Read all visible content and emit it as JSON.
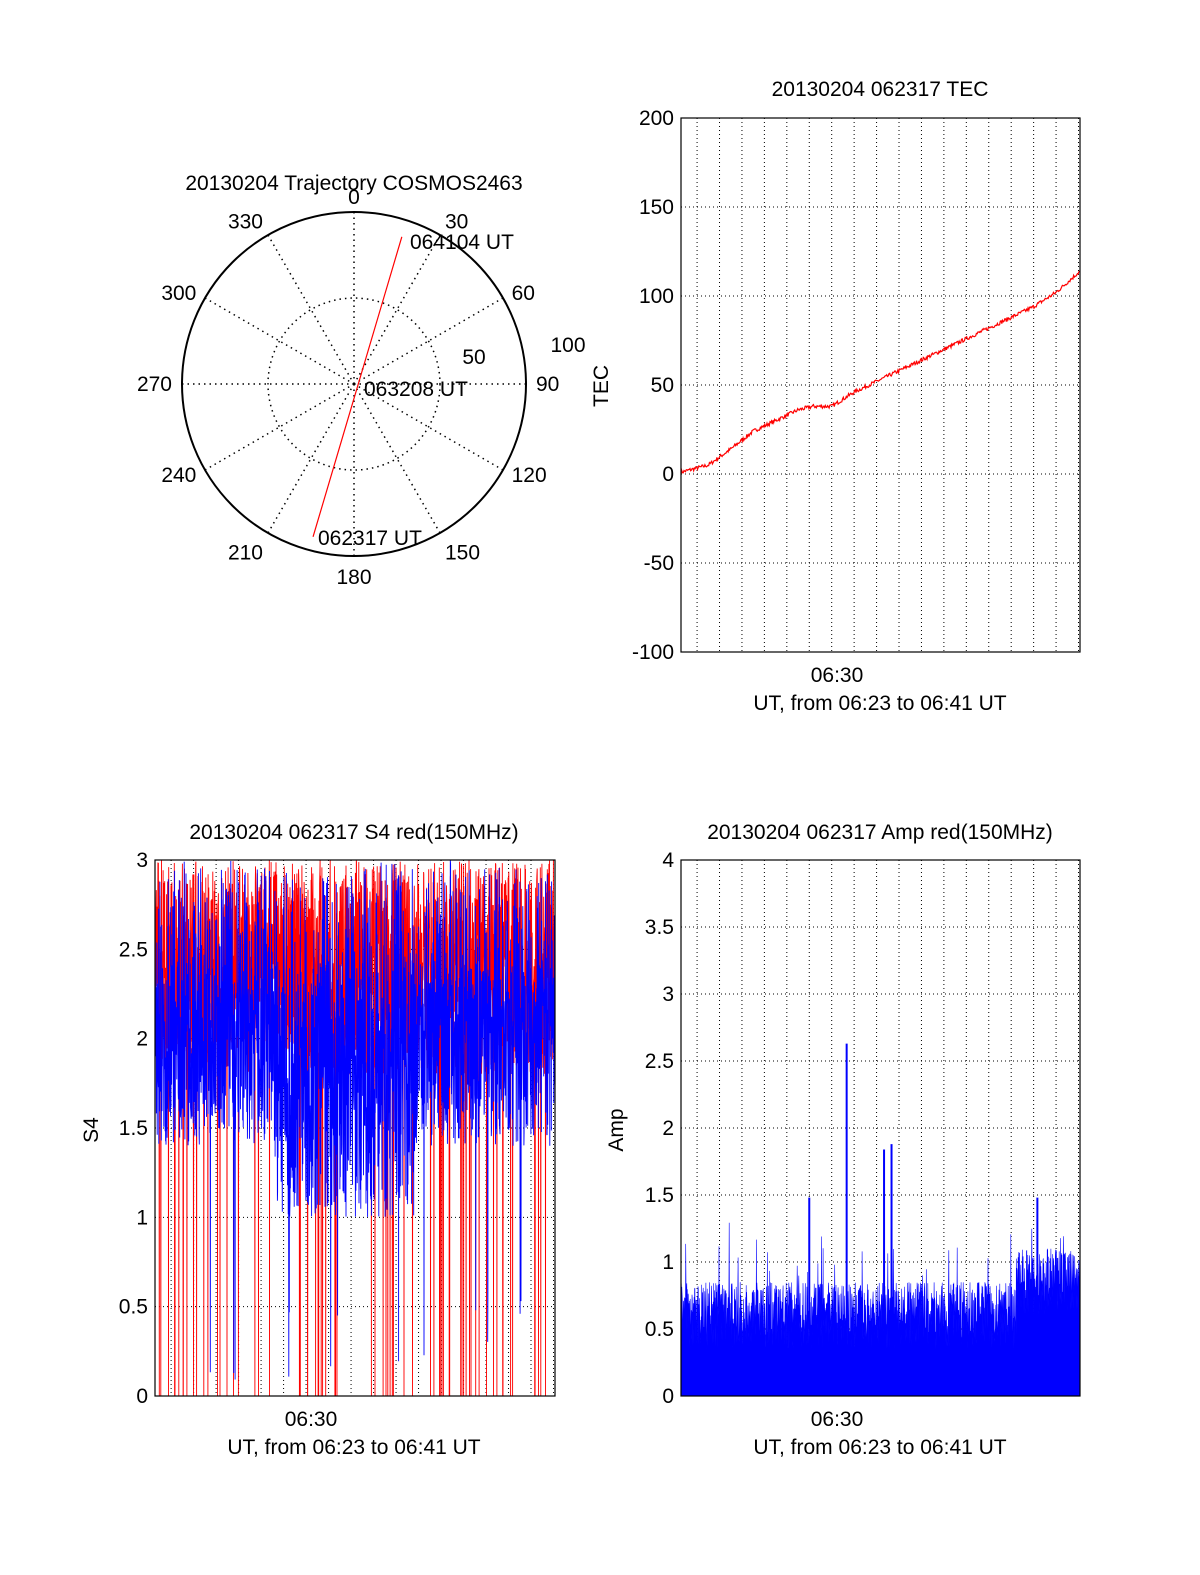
{
  "colors": {
    "red": "#ff0000",
    "blue": "#0000ff",
    "axis": "#000000",
    "grid": "#000000"
  },
  "chart_data": [
    {
      "id": "trajectory",
      "type": "polar",
      "title": "20130204 Trajectory COSMOS2463",
      "angle_labels": [
        "0",
        "30",
        "60",
        "90",
        "120",
        "150",
        "180",
        "210",
        "240",
        "270",
        "300",
        "330"
      ],
      "radial_labels": [
        "50",
        "100"
      ],
      "radial_max": 100,
      "radial_ring": 50,
      "grid": true,
      "track": {
        "color": "#ff0000",
        "start": {
          "label": "062317 UT",
          "azimuth_deg": 195,
          "radius": 92
        },
        "mid": {
          "label": "063208 UT",
          "azimuth_deg": 0,
          "radius": 0
        },
        "end": {
          "label": "064104 UT",
          "azimuth_deg": 18,
          "radius": 90
        }
      }
    },
    {
      "id": "tec",
      "type": "line",
      "title": "20130204 062317 TEC",
      "ylabel": "TEC",
      "xlabel": "UT, from 06:23 to 06:41 UT",
      "x_tick_labels": [
        "06:30"
      ],
      "x_range": [
        "06:23:17",
        "06:41:04"
      ],
      "ylim": [
        -100,
        200
      ],
      "y_ticks": [
        -100,
        -50,
        0,
        50,
        100,
        150,
        200
      ],
      "grid": true,
      "series": [
        {
          "color": "#ff0000",
          "x": [
            "06:23:17",
            "06:24:30",
            "06:25:30",
            "06:26:30",
            "06:27:30",
            "06:28:30",
            "06:29:10",
            "06:30:00",
            "06:31:00",
            "06:32:00",
            "06:33:00",
            "06:34:00",
            "06:35:00",
            "06:36:00",
            "06:37:00",
            "06:38:00",
            "06:39:00",
            "06:40:00",
            "06:41:04"
          ],
          "values": [
            1,
            5,
            14,
            24,
            30,
            36,
            38,
            38,
            46,
            52,
            58,
            64,
            70,
            76,
            82,
            88,
            94,
            102,
            114
          ]
        }
      ]
    },
    {
      "id": "s4",
      "type": "line",
      "title": "20130204 062317 S4 red(150MHz)",
      "ylabel": "S4",
      "xlabel": "UT, from 06:23 to 06:41 UT",
      "x_tick_labels": [
        "06:30"
      ],
      "x_range": [
        "06:23:17",
        "06:41:04"
      ],
      "ylim": [
        0,
        3
      ],
      "y_ticks": [
        0,
        0.5,
        1,
        1.5,
        2,
        2.5,
        3
      ],
      "grid": true,
      "series": [
        {
          "color": "#ff0000",
          "description_level": "noisy, saturating at 3 with frequent drops to 0"
        },
        {
          "color": "#0000ff",
          "description_level": "noisy, mostly between 1.5 and 3"
        }
      ]
    },
    {
      "id": "amp",
      "type": "line",
      "title": "20130204 062317 Amp red(150MHz)",
      "ylabel": "Amp",
      "xlabel": "UT, from 06:23 to 06:41 UT",
      "x_tick_labels": [
        "06:30"
      ],
      "x_range": [
        "06:23:17",
        "06:41:04"
      ],
      "ylim": [
        0,
        4
      ],
      "y_ticks": [
        0,
        0.5,
        1,
        1.5,
        2,
        2.5,
        3,
        3.5,
        4
      ],
      "grid": true,
      "series": [
        {
          "color": "#0000ff",
          "peaks": [
            {
              "x": "06:30:40",
              "value": 2.63
            },
            {
              "x": "06:32:40",
              "value": 1.88
            },
            {
              "x": "06:32:20",
              "value": 1.84
            },
            {
              "x": "06:29:00",
              "value": 1.48
            },
            {
              "x": "06:39:10",
              "value": 1.48
            }
          ]
        }
      ]
    }
  ]
}
